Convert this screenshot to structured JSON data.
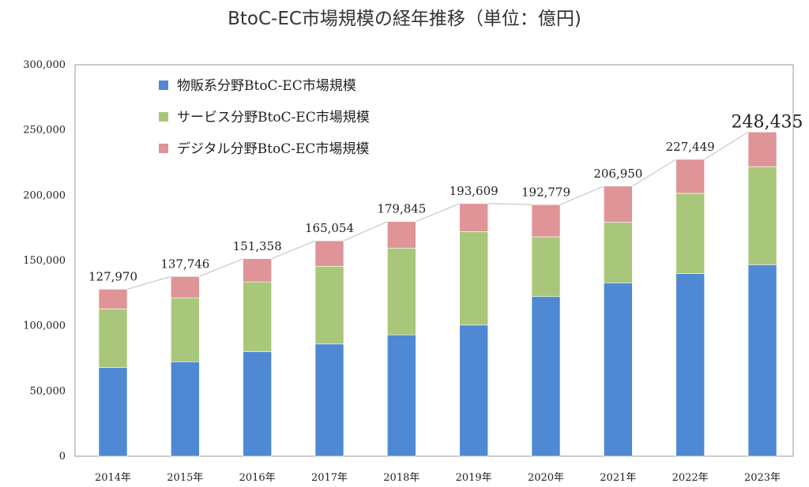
{
  "chart_data": {
    "type": "bar",
    "stacked": true,
    "title": "BtoC-EC市場規模の経年推移（単位：億円)",
    "categories": [
      "2014年",
      "2015年",
      "2016年",
      "2017年",
      "2018年",
      "2019年",
      "2020年",
      "2021年",
      "2022年",
      "2023年"
    ],
    "series": [
      {
        "name": "物販系分野BtoC-EC市場規模",
        "color": "#4f89d3",
        "values": [
          68043,
          72398,
          80043,
          86008,
          92992,
          100515,
          122333,
          132865,
          139997,
          146760
        ]
      },
      {
        "name": "サービス分野BtoC-EC市場規模",
        "color": "#a9c77a",
        "values": [
          44816,
          49014,
          53532,
          59568,
          66471,
          71672,
          45832,
          46424,
          61477,
          75169
        ]
      },
      {
        "name": "デジタル分野BtoC-EC市場規模",
        "color": "#df9498",
        "values": [
          15111,
          16334,
          17782,
          19478,
          20382,
          21422,
          24614,
          27661,
          25975,
          26506
        ]
      }
    ],
    "totals": [
      127970,
      137746,
      151358,
      165054,
      179845,
      193609,
      192779,
      206950,
      227449,
      248435
    ],
    "total_labels": [
      "127,970",
      "137,746",
      "151,358",
      "165,054",
      "179,845",
      "193,609",
      "192,779",
      "206,950",
      "227,449",
      "248,435"
    ],
    "ylim": [
      0,
      300000
    ],
    "yticks": [
      0,
      50000,
      100000,
      150000,
      200000,
      250000,
      300000
    ],
    "ytick_labels": [
      "0",
      "50,000",
      "100,000",
      "150,000",
      "200,000",
      "250,000",
      "300,000"
    ],
    "legend_position": "top-left",
    "grid": false
  }
}
